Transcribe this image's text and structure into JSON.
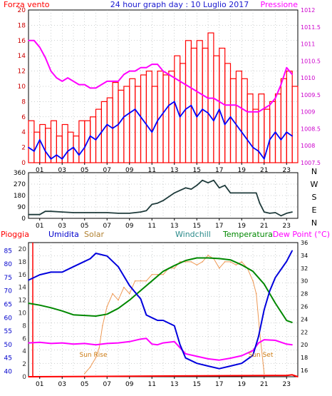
{
  "chart_data": [
    {
      "type": "line",
      "title": "24 hour graph day : 10 Luglio 2017",
      "left_label": "Forza vento",
      "right_label": "Pressione",
      "x_ticks": [
        "01",
        "03",
        "05",
        "07",
        "09",
        "11",
        "13",
        "15",
        "17",
        "19",
        "21",
        "23"
      ],
      "x_range": [
        0,
        24
      ],
      "y_left_ticks": [
        "0",
        "2",
        "4",
        "6",
        "8",
        "10",
        "12",
        "14",
        "16",
        "18",
        "20"
      ],
      "y_left_range": [
        0,
        20
      ],
      "y_right_ticks": [
        "1007.5",
        "1008",
        "1008.5",
        "1009",
        "1009.5",
        "1010",
        "1010.5",
        "1011",
        "1011.5",
        "1012"
      ],
      "y_right_range": [
        1007.5,
        1012
      ],
      "grid": true,
      "series": [
        {
          "key": "gust",
          "color": "#ff0000",
          "kind": "bars",
          "x": [
            0,
            0.5,
            1,
            1.5,
            2,
            2.5,
            3,
            3.5,
            4,
            4.5,
            5,
            5.5,
            6,
            6.5,
            7,
            7.5,
            8,
            8.5,
            9,
            9.5,
            10,
            10.5,
            11,
            11.5,
            12,
            12.5,
            13,
            13.5,
            14,
            14.5,
            15,
            15.5,
            16,
            16.5,
            17,
            17.5,
            18,
            18.5,
            19,
            19.5,
            20,
            20.5,
            21,
            21.5,
            22,
            22.5,
            23,
            23.5
          ],
          "values": [
            5.5,
            4,
            5,
            4.5,
            5.5,
            3.5,
            5,
            4,
            3.5,
            5.5,
            5.5,
            6,
            7,
            8,
            8.5,
            10.5,
            9.5,
            10,
            11,
            10,
            11.5,
            12,
            10,
            12,
            11.5,
            12,
            14,
            13,
            16,
            15,
            16,
            15,
            17,
            14,
            15,
            13,
            11,
            12,
            11,
            9,
            7,
            9,
            7,
            8,
            9,
            11,
            12,
            10
          ]
        },
        {
          "key": "wind",
          "color": "#0000ff",
          "kind": "line",
          "x": [
            0,
            0.5,
            1,
            1.5,
            2,
            2.5,
            3,
            3.5,
            4,
            4.5,
            5,
            5.5,
            6,
            6.5,
            7,
            7.5,
            8,
            8.5,
            9,
            9.5,
            10,
            10.5,
            11,
            11.5,
            12,
            12.5,
            13,
            13.5,
            14,
            14.5,
            15,
            15.5,
            16,
            16.5,
            17,
            17.5,
            18,
            18.5,
            19,
            19.5,
            20,
            20.5,
            21,
            21.5,
            22,
            22.5,
            23,
            23.5
          ],
          "values": [
            2,
            1.5,
            3,
            1.5,
            0.5,
            1,
            0.5,
            1.5,
            2,
            1,
            2,
            3.5,
            3,
            4,
            5,
            4.5,
            5,
            6,
            6.5,
            7,
            6,
            5,
            4,
            5.5,
            6.5,
            7.5,
            8,
            6,
            7,
            7.5,
            6,
            7,
            6.5,
            5.5,
            7,
            5,
            6,
            5,
            4,
            3,
            2,
            1.5,
            0.5,
            3,
            4,
            3,
            4,
            3.5
          ]
        },
        {
          "key": "pressure",
          "color": "#ff00ff",
          "kind": "line",
          "x": [
            0,
            0.5,
            1,
            1.5,
            2,
            2.5,
            3,
            3.5,
            4,
            4.5,
            5,
            5.5,
            6,
            6.5,
            7,
            7.5,
            8,
            8.5,
            9,
            9.5,
            10,
            10.5,
            11,
            11.5,
            12,
            12.5,
            13,
            13.5,
            14,
            14.5,
            15,
            15.5,
            16,
            16.5,
            17,
            17.5,
            18,
            18.5,
            19,
            19.5,
            20,
            20.5,
            21,
            21.5,
            22,
            22.5,
            23,
            23.5
          ],
          "values": [
            1011.1,
            1011.1,
            1010.9,
            1010.6,
            1010.2,
            1010.0,
            1009.9,
            1010.0,
            1009.9,
            1009.8,
            1009.8,
            1009.7,
            1009.7,
            1009.8,
            1009.9,
            1009.9,
            1009.9,
            1010.1,
            1010.2,
            1010.2,
            1010.3,
            1010.3,
            1010.4,
            1010.4,
            1010.2,
            1010.1,
            1010.0,
            1009.9,
            1009.8,
            1009.7,
            1009.6,
            1009.5,
            1009.4,
            1009.4,
            1009.3,
            1009.2,
            1009.2,
            1009.2,
            1009.1,
            1009.0,
            1009.0,
            1009.0,
            1009.1,
            1009.2,
            1009.4,
            1009.8,
            1010.3,
            1010.1
          ]
        }
      ]
    },
    {
      "type": "line",
      "x_ticks": [
        "01",
        "03",
        "05",
        "07",
        "09",
        "11",
        "13",
        "15",
        "17",
        "19",
        "21",
        "23"
      ],
      "x_range": [
        0,
        24
      ],
      "y_ticks": [
        "0",
        "90",
        "180",
        "270",
        "360"
      ],
      "y_range": [
        0,
        360
      ],
      "right_labels": [
        "N",
        "W",
        "S",
        "E",
        "N"
      ],
      "grid": true,
      "series": [
        {
          "key": "direction",
          "color": "#1f3b3b",
          "x": [
            0,
            1,
            1.5,
            2,
            3,
            4,
            5,
            6,
            7,
            8,
            9,
            10,
            10.5,
            11,
            11.5,
            12,
            13,
            14,
            14.5,
            15,
            15.5,
            16,
            16.5,
            17,
            17.5,
            18,
            19,
            20,
            20.3,
            20.6,
            21,
            21.5,
            22,
            22.5,
            23,
            23.5
          ],
          "values": [
            30,
            30,
            55,
            55,
            50,
            45,
            45,
            45,
            45,
            40,
            40,
            50,
            60,
            110,
            120,
            140,
            200,
            240,
            230,
            260,
            300,
            280,
            300,
            240,
            260,
            200,
            200,
            200,
            200,
            120,
            50,
            40,
            45,
            20,
            40,
            50
          ]
        }
      ]
    },
    {
      "type": "line",
      "header_labels": {
        "rain": "Pioggia",
        "humidity": "Umidita",
        "solar": "Solar",
        "windchill": "Windchill",
        "temperature": "Temperatura",
        "dewpoint": "Dew Point (°C)"
      },
      "annotations": [
        "Sun Rise",
        "Sun Set"
      ],
      "x_ticks": [
        "01",
        "03",
        "05",
        "07",
        "09",
        "11",
        "13",
        "15",
        "17",
        "19",
        "21",
        "23"
      ],
      "x_range": [
        0,
        24
      ],
      "y_humidity_ticks": [
        "40",
        "45",
        "50",
        "55",
        "60",
        "65",
        "70",
        "75",
        "80",
        "85"
      ],
      "y_humidity_range": [
        38,
        88
      ],
      "y_rain_ticks": [
        "0",
        "2",
        "4",
        "6",
        "8",
        "10",
        "12",
        "14",
        "16",
        "18",
        "20"
      ],
      "y_rain_range": [
        0,
        21
      ],
      "y_temp_ticks": [
        "16",
        "18",
        "20",
        "22",
        "24",
        "26",
        "28",
        "30",
        "32",
        "34",
        "36"
      ],
      "y_temp_range": [
        15,
        36
      ],
      "grid": true,
      "series": [
        {
          "key": "humidity",
          "color": "#0000dd",
          "x": [
            0,
            1,
            2,
            3,
            4,
            5,
            5.5,
            6,
            7,
            8,
            9,
            10,
            10.5,
            11,
            11.5,
            12,
            13,
            13.5,
            14,
            15,
            16,
            17,
            18,
            19,
            20,
            20.5,
            21,
            21.5,
            22,
            23,
            23.5
          ],
          "values": [
            74,
            76,
            77,
            77,
            79,
            81,
            82,
            84,
            83,
            79,
            72,
            67,
            61,
            60,
            59,
            59,
            57,
            50,
            45,
            43,
            42,
            41,
            42,
            43,
            46,
            53,
            63,
            70,
            75,
            81,
            85
          ]
        },
        {
          "key": "dewpoint",
          "color": "#ff00ff",
          "x": [
            0,
            1,
            2,
            3,
            4,
            5,
            6,
            7,
            8,
            9,
            10,
            10.5,
            11,
            11.5,
            12,
            13,
            14,
            15,
            16,
            17,
            18,
            19,
            20,
            20.5,
            21,
            22,
            23,
            23.5
          ],
          "values": [
            20.3,
            20.4,
            20.2,
            20.3,
            20.1,
            20.2,
            20.0,
            20.2,
            20.3,
            20.5,
            20.9,
            21.0,
            20.1,
            20.0,
            20.3,
            20.5,
            18.6,
            18.2,
            17.8,
            17.6,
            17.9,
            18.3,
            19.1,
            20.3,
            20.8,
            20.7,
            20.1,
            20.0
          ]
        },
        {
          "key": "temperature",
          "color": "#008800",
          "x": [
            0,
            1,
            2,
            3,
            4,
            5,
            6,
            7,
            8,
            9,
            10,
            11,
            12,
            13,
            14,
            15,
            16,
            17,
            18,
            19,
            20,
            21,
            22,
            23,
            23.5
          ],
          "values": [
            26.5,
            26.2,
            25.8,
            25.3,
            24.7,
            24.6,
            24.5,
            24.8,
            25.7,
            27.0,
            28.5,
            30.0,
            31.5,
            32.4,
            33.2,
            33.6,
            33.6,
            33.5,
            33.3,
            32.5,
            31.5,
            29.5,
            26.5,
            23.8,
            23.5
          ]
        },
        {
          "key": "solar",
          "color": "#ee9955",
          "x": [
            5,
            5.5,
            6,
            6.3,
            6.6,
            7,
            7.5,
            8,
            8.5,
            9,
            9.5,
            10,
            10.5,
            11,
            11.5,
            12,
            12.5,
            13,
            13.5,
            14,
            14.5,
            15,
            15.5,
            16,
            16.5,
            17,
            17.5,
            18,
            18.5,
            19,
            19.5,
            20,
            20.3,
            20.6,
            21
          ],
          "values": [
            15.5,
            16.5,
            18,
            19.5,
            23,
            26,
            28,
            27,
            29,
            28,
            30,
            30,
            30,
            31,
            31,
            31,
            32,
            32,
            33,
            33,
            33,
            32.5,
            33,
            34,
            33.5,
            32,
            33,
            33,
            32.5,
            33,
            32,
            30,
            28,
            22,
            15.5
          ]
        },
        {
          "key": "rain",
          "color": "#ff0000",
          "x": [
            0,
            23,
            23.5,
            24
          ],
          "values": [
            0,
            0.2,
            0.3,
            0
          ]
        }
      ]
    }
  ]
}
